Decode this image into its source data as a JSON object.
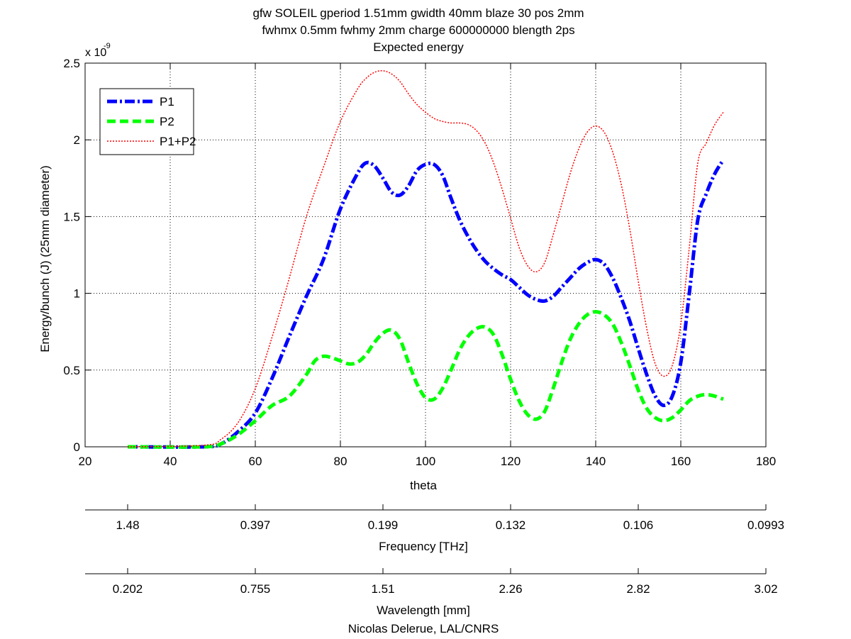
{
  "chart_data": {
    "type": "line",
    "title": [
      "gfw SOLEIL gperiod 1.51mm gwidth 40mm blaze 30 pos 2mm",
      "fwhmx 0.5mm fwhmy 2mm charge 600000000 blength 2ps",
      "Expected energy"
    ],
    "xlabel": "theta",
    "ylabel": "Energy/bunch (J) (25mm diameter)",
    "y_multiplier": "x 10",
    "y_exponent": "-9",
    "xlim": [
      20,
      180
    ],
    "ylim": [
      0,
      2.5
    ],
    "xticks": [
      20,
      40,
      60,
      80,
      100,
      120,
      140,
      160,
      180
    ],
    "yticks": [
      0,
      0.5,
      1,
      1.5,
      2,
      2.5
    ],
    "ytick_labels": [
      "0",
      "0.5",
      "1",
      "1.5",
      "2",
      "2.5"
    ],
    "grid": true,
    "legend_position": "top-left",
    "series": [
      {
        "name": "P1",
        "color": "#0000ff",
        "style": "dash-dot",
        "x": [
          30,
          48,
          52,
          56,
          60,
          64,
          68,
          72,
          76,
          80,
          84,
          86,
          88,
          90,
          92,
          94,
          96,
          98,
          100,
          102,
          104,
          106,
          108,
          110,
          112,
          114,
          116,
          118,
          120,
          122,
          124,
          126,
          128,
          130,
          132,
          134,
          136,
          138,
          140,
          142,
          144,
          146,
          148,
          150,
          152,
          154,
          156,
          158,
          160,
          162,
          164,
          166,
          168,
          170
        ],
        "y": [
          0,
          0,
          0.02,
          0.1,
          0.22,
          0.45,
          0.72,
          0.98,
          1.22,
          1.55,
          1.78,
          1.85,
          1.83,
          1.75,
          1.66,
          1.64,
          1.7,
          1.8,
          1.84,
          1.84,
          1.77,
          1.62,
          1.48,
          1.37,
          1.28,
          1.21,
          1.16,
          1.12,
          1.09,
          1.04,
          0.99,
          0.96,
          0.95,
          0.98,
          1.04,
          1.1,
          1.16,
          1.2,
          1.22,
          1.19,
          1.1,
          0.97,
          0.82,
          0.64,
          0.47,
          0.33,
          0.27,
          0.33,
          0.55,
          1.0,
          1.48,
          1.65,
          1.78,
          1.87
        ]
      },
      {
        "name": "P2",
        "color": "#00ff00",
        "style": "dashed",
        "x": [
          30,
          48,
          52,
          56,
          60,
          64,
          68,
          72,
          74,
          76,
          78,
          80,
          82,
          84,
          86,
          88,
          90,
          92,
          94,
          96,
          98,
          100,
          102,
          104,
          106,
          108,
          110,
          112,
          114,
          116,
          118,
          120,
          122,
          124,
          126,
          128,
          130,
          132,
          134,
          136,
          138,
          140,
          142,
          144,
          146,
          148,
          150,
          152,
          154,
          156,
          158,
          160,
          162,
          164,
          166,
          168,
          170
        ],
        "y": [
          0,
          0,
          0.02,
          0.08,
          0.17,
          0.27,
          0.33,
          0.47,
          0.56,
          0.59,
          0.58,
          0.56,
          0.54,
          0.55,
          0.6,
          0.68,
          0.74,
          0.76,
          0.7,
          0.55,
          0.41,
          0.32,
          0.31,
          0.38,
          0.5,
          0.63,
          0.72,
          0.77,
          0.78,
          0.73,
          0.6,
          0.44,
          0.3,
          0.21,
          0.18,
          0.23,
          0.38,
          0.55,
          0.7,
          0.8,
          0.86,
          0.88,
          0.86,
          0.8,
          0.68,
          0.53,
          0.37,
          0.25,
          0.19,
          0.17,
          0.19,
          0.24,
          0.3,
          0.33,
          0.34,
          0.33,
          0.31
        ]
      },
      {
        "name": "P1+P2",
        "color": "#ff0000",
        "style": "dotted",
        "x": [
          30,
          48,
          52,
          56,
          60,
          64,
          68,
          72,
          76,
          80,
          84,
          86,
          88,
          90,
          92,
          94,
          96,
          98,
          100,
          102,
          104,
          106,
          108,
          110,
          112,
          114,
          116,
          118,
          120,
          122,
          124,
          126,
          128,
          130,
          132,
          134,
          136,
          138,
          140,
          142,
          144,
          146,
          148,
          150,
          152,
          154,
          156,
          158,
          160,
          162,
          164,
          166,
          168,
          170
        ],
        "y": [
          0,
          0.01,
          0.05,
          0.16,
          0.38,
          0.72,
          1.1,
          1.5,
          1.82,
          2.12,
          2.33,
          2.4,
          2.44,
          2.45,
          2.43,
          2.38,
          2.3,
          2.23,
          2.18,
          2.14,
          2.12,
          2.11,
          2.11,
          2.1,
          2.06,
          1.98,
          1.85,
          1.68,
          1.49,
          1.3,
          1.18,
          1.14,
          1.2,
          1.38,
          1.58,
          1.78,
          1.94,
          2.05,
          2.09,
          2.05,
          1.92,
          1.71,
          1.42,
          1.08,
          0.77,
          0.54,
          0.46,
          0.53,
          0.8,
          1.3,
          1.85,
          1.98,
          2.1,
          2.18
        ]
      }
    ],
    "secondary_axes": [
      {
        "label": "Frequency [THz]",
        "tick_labels": [
          "1.48",
          "0.397",
          "0.199",
          "0.132",
          "0.106",
          "0.0993"
        ],
        "tick_theta": [
          30,
          60,
          90,
          120,
          150,
          180
        ]
      },
      {
        "label": "Wavelength [mm]",
        "tick_labels": [
          "0.202",
          "0.755",
          "1.51",
          "2.26",
          "2.82",
          "3.02"
        ],
        "tick_theta": [
          30,
          60,
          90,
          120,
          150,
          180
        ]
      }
    ],
    "footer": "Nicolas Delerue, LAL/CNRS"
  }
}
